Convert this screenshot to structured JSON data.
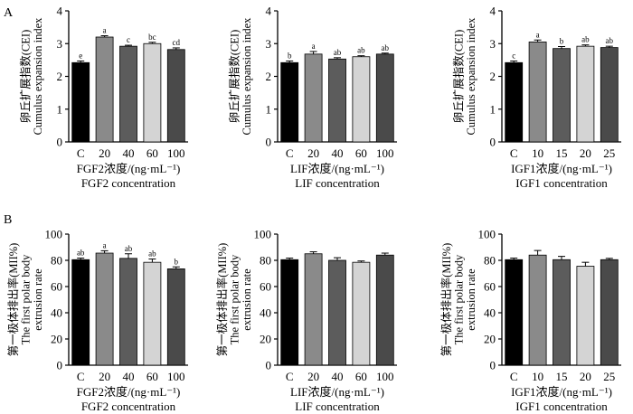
{
  "panel_labels": [
    "A",
    "B"
  ],
  "chart_data": [
    {
      "type": "bar",
      "panel": "A",
      "categories": [
        "C",
        "20",
        "40",
        "60",
        "100"
      ],
      "values": [
        2.42,
        3.2,
        2.92,
        3.0,
        2.82
      ],
      "errors": [
        0.05,
        0.04,
        0.03,
        0.04,
        0.05
      ],
      "sig_labels": [
        "e",
        "a",
        "c",
        "bc",
        "cd"
      ],
      "bar_colors": [
        "#000000",
        "#8a8a8a",
        "#5c5c5c",
        "#d4d4d4",
        "#4a4a4a"
      ],
      "ylabel": [
        "卵丘扩展指数(CEI)",
        "Cumulus expansion index"
      ],
      "xlabel": [
        "FGF2浓度/(ng·mL⁻¹)",
        "FGF2 concentration"
      ],
      "ylim": [
        0,
        4
      ],
      "yticks": [
        0,
        1,
        2,
        3,
        4
      ]
    },
    {
      "type": "bar",
      "panel": "A",
      "categories": [
        "C",
        "20",
        "40",
        "60",
        "100"
      ],
      "values": [
        2.42,
        2.68,
        2.53,
        2.6,
        2.68
      ],
      "errors": [
        0.05,
        0.08,
        0.04,
        0.03,
        0.03
      ],
      "sig_labels": [
        "b",
        "a",
        "ab",
        "ab",
        "ab"
      ],
      "bar_colors": [
        "#000000",
        "#8a8a8a",
        "#5c5c5c",
        "#d4d4d4",
        "#4a4a4a"
      ],
      "ylabel": [
        "卵丘扩展指数(CEI)",
        "Cumulus expansion index"
      ],
      "xlabel": [
        "LIF浓度/(ng·mL⁻¹)",
        "LIF concentration"
      ],
      "ylim": [
        0,
        4
      ],
      "yticks": [
        0,
        1,
        2,
        3,
        4
      ]
    },
    {
      "type": "bar",
      "panel": "A",
      "categories": [
        "C",
        "10",
        "15",
        "20",
        "25"
      ],
      "values": [
        2.42,
        3.05,
        2.85,
        2.92,
        2.88
      ],
      "errors": [
        0.05,
        0.06,
        0.06,
        0.04,
        0.04
      ],
      "sig_labels": [
        "c",
        "a",
        "b",
        "ab",
        "ab"
      ],
      "bar_colors": [
        "#000000",
        "#8a8a8a",
        "#5c5c5c",
        "#d4d4d4",
        "#4a4a4a"
      ],
      "ylabel": [
        "卵丘扩展指数(CEI)",
        "Cumulus expansion index"
      ],
      "xlabel": [
        "IGF1浓度/(ng·mL⁻¹)",
        "IGF1 concentration"
      ],
      "ylim": [
        0,
        4
      ],
      "yticks": [
        0,
        1,
        2,
        3,
        4
      ]
    },
    {
      "type": "bar",
      "panel": "B",
      "categories": [
        "C",
        "20",
        "40",
        "60",
        "100"
      ],
      "values": [
        80.5,
        85.5,
        81.5,
        78.5,
        73.5
      ],
      "errors": [
        1.2,
        1.8,
        3.5,
        2.5,
        1.5
      ],
      "sig_labels": [
        "ab",
        "a",
        "ab",
        "ab",
        "b"
      ],
      "bar_colors": [
        "#000000",
        "#8a8a8a",
        "#5c5c5c",
        "#d4d4d4",
        "#4a4a4a"
      ],
      "ylabel": [
        "第一极体排出率(MII%)",
        "The first polar body",
        "extrusion rate"
      ],
      "xlabel": [
        "FGF2浓度/(ng·mL⁻¹)",
        "FGF2 concentration"
      ],
      "ylim": [
        0,
        100
      ],
      "yticks": [
        0,
        20,
        40,
        60,
        80,
        100
      ]
    },
    {
      "type": "bar",
      "panel": "B",
      "categories": [
        "C",
        "20",
        "40",
        "60",
        "100"
      ],
      "values": [
        80.5,
        85.0,
        80.0,
        78.5,
        84.0
      ],
      "errors": [
        1.2,
        1.5,
        2.0,
        1.0,
        1.5
      ],
      "sig_labels": [
        "",
        "",
        "",
        "",
        ""
      ],
      "bar_colors": [
        "#000000",
        "#8a8a8a",
        "#5c5c5c",
        "#d4d4d4",
        "#4a4a4a"
      ],
      "ylabel": [
        "第一极体排出率(MII%)",
        "The first polar body",
        "extrusion rate"
      ],
      "xlabel": [
        "LIF浓度/(ng·mL⁻¹)",
        "LIF concentration"
      ],
      "ylim": [
        0,
        100
      ],
      "yticks": [
        0,
        20,
        40,
        60,
        80,
        100
      ]
    },
    {
      "type": "bar",
      "panel": "B",
      "categories": [
        "C",
        "10",
        "15",
        "20",
        "25"
      ],
      "values": [
        80.5,
        84.0,
        80.5,
        75.5,
        80.5
      ],
      "errors": [
        1.2,
        3.5,
        2.5,
        3.0,
        1.0
      ],
      "sig_labels": [
        "",
        "",
        "",
        "",
        ""
      ],
      "bar_colors": [
        "#000000",
        "#8a8a8a",
        "#5c5c5c",
        "#d4d4d4",
        "#4a4a4a"
      ],
      "ylabel": [
        "第一极体排出率(MII%)",
        "The first polar body",
        "extrusion rate"
      ],
      "xlabel": [
        "IGF1浓度/(ng·mL⁻¹)",
        "IGF1 concentration"
      ],
      "ylim": [
        0,
        100
      ],
      "yticks": [
        0,
        20,
        40,
        60,
        80,
        100
      ]
    }
  ]
}
